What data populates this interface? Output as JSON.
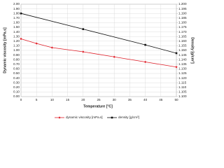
{
  "chart_data": {
    "type": "line",
    "x_label": "Temperature [°C]",
    "y_label": "Dynamic viscosity [mPa.s]",
    "y2_label": "Density [g/cm³]",
    "xlim": [
      0,
      50
    ],
    "xticks": [
      0,
      5,
      10,
      15,
      20,
      25,
      30,
      35,
      40,
      45,
      50
    ],
    "ylim": [
      0,
      2
    ],
    "yticks": [
      {
        "value": 0,
        "label": "0.00"
      },
      {
        "value": 0.1,
        "label": "0.10"
      },
      {
        "value": 0.2,
        "label": "0.20"
      },
      {
        "value": 0.3,
        "label": "0.30"
      },
      {
        "value": 0.4,
        "label": "0.40"
      },
      {
        "value": 0.5,
        "label": "0.50"
      },
      {
        "value": 0.6,
        "label": "0.60"
      },
      {
        "value": 0.7,
        "label": "0.70"
      },
      {
        "value": 0.8,
        "label": "0.80"
      },
      {
        "value": 0.9,
        "label": "0.90"
      },
      {
        "value": 1,
        "label": "1.00"
      },
      {
        "value": 1.1,
        "label": "1.10"
      },
      {
        "value": 1.2,
        "label": "1.20"
      },
      {
        "value": 1.3,
        "label": "1.30"
      },
      {
        "value": 1.4,
        "label": "1.40"
      },
      {
        "value": 1.5,
        "label": "1.50"
      },
      {
        "value": 1.6,
        "label": "1.60"
      },
      {
        "value": 1.7,
        "label": "1.70"
      },
      {
        "value": 1.8,
        "label": "1.80"
      },
      {
        "value": 1.9,
        "label": "1.90"
      },
      {
        "value": 2,
        "label": "2.00"
      }
    ],
    "y2lim": [
      1.1,
      1.2
    ],
    "y2ticks": [
      {
        "value": 1.1,
        "label": "1.100"
      },
      {
        "value": 1.105,
        "label": "1.105"
      },
      {
        "value": 1.11,
        "label": "1.110"
      },
      {
        "value": 1.115,
        "label": "1.115"
      },
      {
        "value": 1.12,
        "label": "1.120"
      },
      {
        "value": 1.125,
        "label": "1.125"
      },
      {
        "value": 1.13,
        "label": "1.130"
      },
      {
        "value": 1.135,
        "label": "1.135"
      },
      {
        "value": 1.14,
        "label": "1.140"
      },
      {
        "value": 1.145,
        "label": "1.145"
      },
      {
        "value": 1.15,
        "label": "1.150"
      },
      {
        "value": 1.155,
        "label": "1.155"
      },
      {
        "value": 1.16,
        "label": "1.160"
      },
      {
        "value": 1.165,
        "label": "1.165"
      },
      {
        "value": 1.17,
        "label": "1.170"
      },
      {
        "value": 1.175,
        "label": "1.175"
      },
      {
        "value": 1.18,
        "label": "1.180"
      },
      {
        "value": 1.185,
        "label": "1.185"
      },
      {
        "value": 1.19,
        "label": "1.190"
      },
      {
        "value": 1.195,
        "label": "1.195"
      },
      {
        "value": 1.2,
        "label": "1.200"
      }
    ],
    "grid": true,
    "series": [
      {
        "name": "dynamic viscosity [mPa.s]",
        "color": "#e0202a",
        "marker": "diamond",
        "x": [
          0,
          5,
          10,
          20,
          30,
          40,
          50
        ],
        "values": [
          1.25,
          1.15,
          1.06,
          0.97,
          0.86,
          0.75,
          0.64
        ]
      },
      {
        "name": "density [g/cm³]",
        "color": "#111111",
        "marker": "square",
        "axis": "y2",
        "x": [
          0,
          20,
          40,
          50
        ],
        "values": [
          1.19,
          1.173,
          1.156,
          1.147
        ]
      }
    ]
  }
}
